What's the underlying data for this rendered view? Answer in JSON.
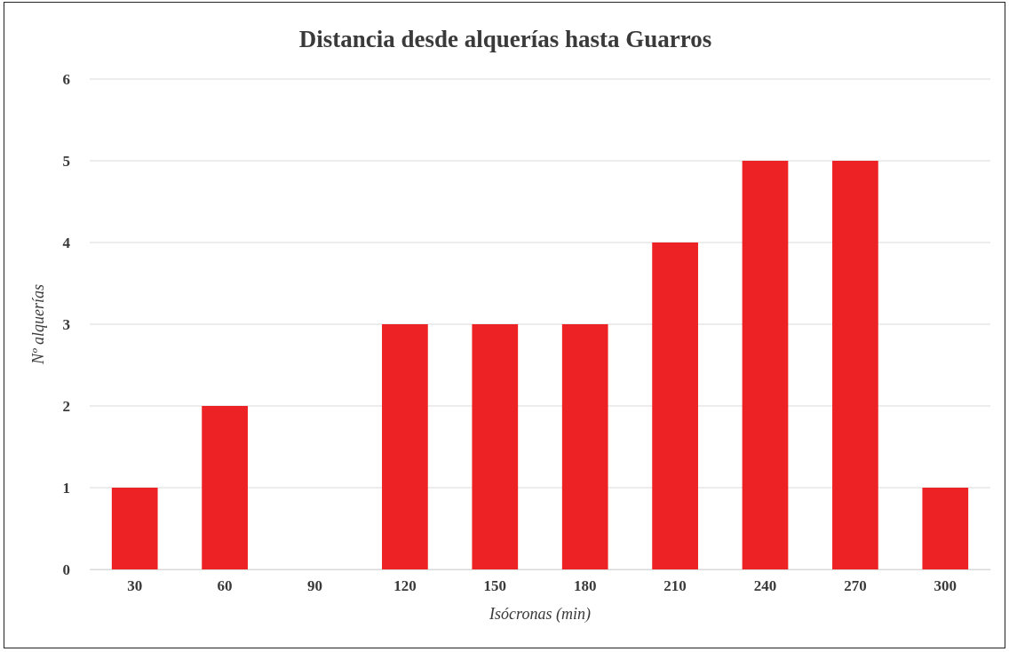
{
  "chart_data": {
    "type": "bar",
    "title": "Distancia desde alquerías hasta Guarros",
    "xlabel": "Isócronas (min)",
    "ylabel": "Nº alquerías",
    "categories": [
      "30",
      "60",
      "90",
      "120",
      "150",
      "180",
      "210",
      "240",
      "270",
      "300"
    ],
    "values": [
      1,
      2,
      0,
      3,
      3,
      3,
      4,
      5,
      5,
      1
    ],
    "color": "#ed2224",
    "ylim": [
      0,
      6
    ],
    "yticks": [
      0,
      1,
      2,
      3,
      4,
      5,
      6
    ],
    "grid": "y"
  }
}
